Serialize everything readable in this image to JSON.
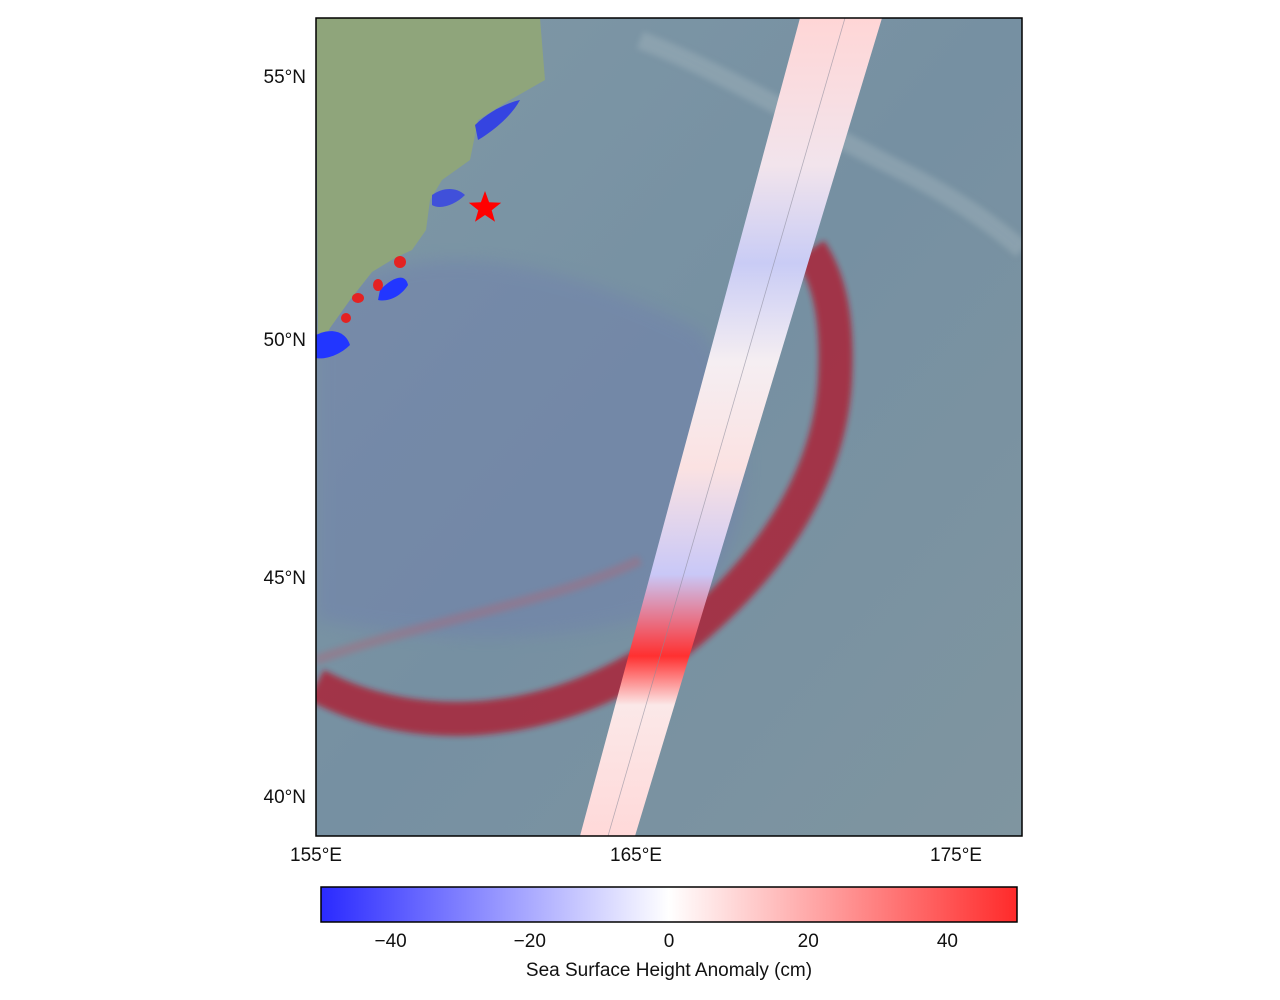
{
  "map": {
    "lat_ticks": [
      "55°N",
      "50°N",
      "45°N",
      "40°N"
    ],
    "lon_ticks": [
      "155°E",
      "165°E",
      "175°E"
    ],
    "epicenter_marker": "red star",
    "colors": {
      "ocean": "#7d97a3",
      "land": "#8ea27a",
      "positive": "#ff2020",
      "negative": "#2a2aff",
      "star": "#ff0000"
    }
  },
  "colorbar": {
    "ticks": [
      "−40",
      "−20",
      "0",
      "20",
      "40"
    ],
    "label": "Sea Surface Height Anomaly (cm)",
    "colormap": "blue-white-red",
    "range_cm": [
      -50,
      50
    ]
  }
}
